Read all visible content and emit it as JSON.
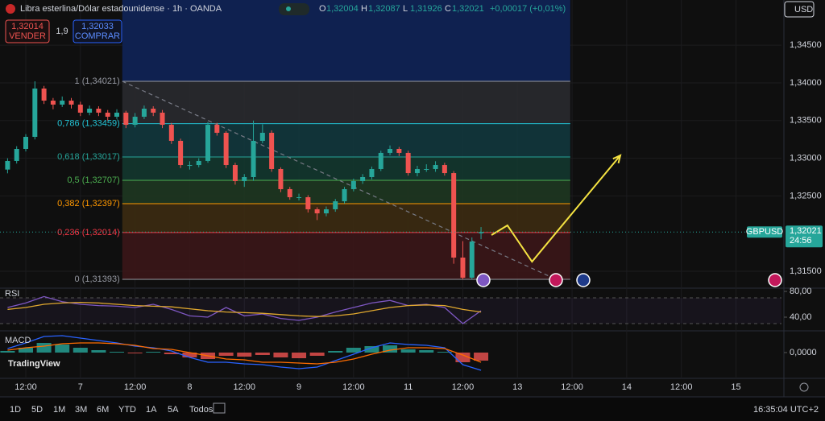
{
  "header": {
    "title": "Libra esterlina/Dólar estadounidense · 1h · OANDA",
    "ohlc": [
      {
        "key": "O",
        "value": "1,32004"
      },
      {
        "key": "H",
        "value": "1,32087"
      },
      {
        "key": "L",
        "value": "1,31926"
      },
      {
        "key": "C",
        "value": "1,32021"
      }
    ],
    "change": "+0,00017 (+0,01%)",
    "sell": {
      "price": "1,32014",
      "label": "VENDER"
    },
    "spread": "1,9",
    "buy": {
      "price": "1,32033",
      "label": "COMPRAR"
    },
    "currency": "USD"
  },
  "chart_data": [
    {
      "type": "candlestick",
      "symbol": "GBPUSD",
      "last_price_label": "1,32021",
      "countdown": "24:56",
      "x": [
        -4,
        -2,
        0,
        2,
        4,
        6,
        8,
        10,
        12,
        14,
        16,
        18,
        20,
        22,
        24,
        26,
        28,
        30,
        32,
        34,
        36,
        38,
        40,
        42,
        44,
        46,
        48,
        50,
        52,
        54,
        56,
        58,
        60,
        62,
        64,
        66,
        68,
        70,
        72,
        74,
        76,
        78,
        80,
        82,
        84,
        86,
        88,
        90,
        92,
        94,
        96,
        98,
        100
      ],
      "open": [
        1.3285,
        1.32964,
        1.33124,
        1.33284,
        1.33925,
        1.33765,
        1.33712,
        1.33765,
        1.33712,
        1.33605,
        1.33658,
        1.33605,
        1.33551,
        1.33605,
        1.33444,
        1.33551,
        1.33658,
        1.33605,
        1.33444,
        1.33231,
        1.3291,
        1.3291,
        1.32964,
        1.33444,
        1.33338,
        1.3291,
        1.32697,
        1.3275,
        1.33231,
        1.33338,
        1.32857,
        1.3259,
        1.32483,
        1.32483,
        1.32323,
        1.32269,
        1.32323,
        1.32429,
        1.3259,
        1.32697,
        1.3275,
        1.32857,
        1.33071,
        1.33124,
        1.33071,
        1.32803,
        1.32857,
        1.32857,
        1.3291,
        1.32803,
        1.31682,
        1.31415,
        1.32004
      ],
      "high": [
        1.33,
        1.3316,
        1.3332,
        1.34021,
        1.3396,
        1.338,
        1.3382,
        1.338,
        1.3375,
        1.337,
        1.3369,
        1.3364,
        1.3365,
        1.3363,
        1.336,
        1.337,
        1.3369,
        1.3364,
        1.3347,
        1.3326,
        1.3296,
        1.33,
        1.3348,
        1.3347,
        1.3336,
        1.3294,
        1.3279,
        1.335,
        1.3345,
        1.3337,
        1.3288,
        1.3262,
        1.3253,
        1.3251,
        1.3235,
        1.3236,
        1.3246,
        1.3262,
        1.3273,
        1.3279,
        1.3289,
        1.331,
        1.3317,
        1.3315,
        1.331,
        1.329,
        1.3292,
        1.3296,
        1.3294,
        1.3283,
        1.319,
        1.3195,
        1.32087
      ],
      "low": [
        1.328,
        1.3293,
        1.3309,
        1.3325,
        1.3372,
        1.3365,
        1.3368,
        1.3366,
        1.3356,
        1.3357,
        1.3356,
        1.335,
        1.3352,
        1.334,
        1.3341,
        1.3352,
        1.3356,
        1.334,
        1.3319,
        1.3287,
        1.3285,
        1.3288,
        1.3294,
        1.333,
        1.3287,
        1.3265,
        1.3262,
        1.327,
        1.332,
        1.3282,
        1.3255,
        1.3245,
        1.3244,
        1.3228,
        1.3218,
        1.3223,
        1.3229,
        1.324,
        1.3256,
        1.3266,
        1.3272,
        1.3283,
        1.3304,
        1.3303,
        1.3277,
        1.3276,
        1.3282,
        1.3282,
        1.3277,
        1.316,
        1.31393,
        1.31393,
        1.31926
      ],
      "close": [
        1.32964,
        1.33124,
        1.33284,
        1.33925,
        1.33765,
        1.33712,
        1.33765,
        1.33712,
        1.33605,
        1.33658,
        1.33605,
        1.33551,
        1.33605,
        1.33444,
        1.33551,
        1.33658,
        1.33605,
        1.33444,
        1.33231,
        1.3291,
        1.3291,
        1.32964,
        1.33444,
        1.33338,
        1.3291,
        1.32697,
        1.3275,
        1.33231,
        1.33338,
        1.32857,
        1.3259,
        1.32483,
        1.32483,
        1.32323,
        1.32269,
        1.32323,
        1.32429,
        1.3259,
        1.32697,
        1.3275,
        1.32857,
        1.33071,
        1.33124,
        1.33071,
        1.32803,
        1.32857,
        1.32857,
        1.3291,
        1.32803,
        1.31682,
        1.31415,
        1.31895,
        1.32021
      ],
      "up_color": "#26a69a",
      "down_color": "#ef5350",
      "xlim": [
        -5.664,
        166
      ],
      "ylim": [
        1.31308,
        1.351
      ],
      "yticks": [
        {
          "value": 1.345,
          "label": "1,34500"
        },
        {
          "value": 1.34,
          "label": "1,34000"
        },
        {
          "value": 1.335,
          "label": "1,33500"
        },
        {
          "value": 1.33,
          "label": "1,33000"
        },
        {
          "value": 1.325,
          "label": "1,32500"
        },
        {
          "value": 1.315,
          "label": "1,31500"
        }
      ],
      "xticks": [
        {
          "value": 0,
          "label": "12:00"
        },
        {
          "value": 12,
          "label": "7"
        },
        {
          "value": 24,
          "label": "12:00"
        },
        {
          "value": 36,
          "label": "8"
        },
        {
          "value": 48,
          "label": "12:00"
        },
        {
          "value": 60,
          "label": "9"
        },
        {
          "value": 72,
          "label": "12:00"
        },
        {
          "value": 84,
          "label": "11"
        },
        {
          "value": 96,
          "label": "12:00"
        },
        {
          "value": 108,
          "label": "13"
        },
        {
          "value": 120,
          "label": "12:00"
        },
        {
          "value": 132,
          "label": "14"
        },
        {
          "value": 144,
          "label": "12:00"
        },
        {
          "value": 156,
          "label": "15"
        }
      ],
      "grid": true,
      "fib": {
        "x": [
          21.2,
          119.6
        ],
        "levels": [
          {
            "label": "1 (1,34021)",
            "value": 1.34021,
            "color": "#9598a1",
            "fill": "#2a2b30"
          },
          {
            "label": "0,786 (1,33459)",
            "value": 1.33459,
            "color": "#22c4d6",
            "fill": "#123a3f"
          },
          {
            "label": "0,618 (1,33017)",
            "value": 1.33017,
            "color": "#26a69a",
            "fill": "#133a30"
          },
          {
            "label": "0,5 (1,32707)",
            "value": 1.32707,
            "color": "#4caf50",
            "fill": "#1f3a22"
          },
          {
            "label": "0,382 (1,32397)",
            "value": 1.32397,
            "color": "#ff9800",
            "fill": "#3e2d12"
          },
          {
            "label": "0,236 (1,32014)",
            "value": 1.32014,
            "color": "#f23645",
            "fill": "#3d1619"
          },
          {
            "label": "0 (1,31393)",
            "value": 1.31393,
            "color": "#9598a1"
          }
        ],
        "top_fill": "#0f2150"
      },
      "trendline": {
        "x": [
          21.2,
          116.5
        ],
        "y": [
          1.34021,
          1.31393
        ],
        "color": "#787b86"
      },
      "projection": {
        "x": [
          102.3,
          105.8,
          111.2,
          130.6
        ],
        "y": [
          1.31981,
          1.32109,
          1.31628,
          1.33038
        ],
        "color": "#f5e342"
      }
    },
    {
      "type": "line",
      "title": "RSI",
      "x": [
        -4,
        0,
        4,
        8,
        12,
        16,
        20,
        24,
        28,
        32,
        36,
        40,
        44,
        48,
        52,
        56,
        60,
        64,
        68,
        72,
        76,
        80,
        84,
        88,
        92,
        96,
        100
      ],
      "series": [
        {
          "color": "#7e57c2",
          "values": [
            55,
            62,
            72,
            64,
            60,
            58,
            57,
            55,
            60,
            52,
            42,
            40,
            55,
            42,
            45,
            38,
            35,
            40,
            48,
            55,
            62,
            66,
            58,
            60,
            55,
            30,
            50
          ]
        },
        {
          "color": "#e0a82e",
          "values": [
            52,
            55,
            60,
            62,
            63,
            62,
            60,
            58,
            57,
            56,
            53,
            50,
            48,
            47,
            46,
            44,
            42,
            41,
            42,
            45,
            50,
            55,
            58,
            59,
            58,
            52,
            48
          ]
        }
      ],
      "ylim": [
        20,
        85
      ],
      "yticks": [
        {
          "value": 80,
          "label": "80,00"
        },
        {
          "value": 40,
          "label": "40,00"
        }
      ],
      "bands": [
        30,
        70
      ]
    },
    {
      "type": "macd",
      "title": "MACD",
      "x": [
        -4,
        0,
        4,
        8,
        12,
        16,
        20,
        24,
        28,
        32,
        36,
        40,
        44,
        48,
        52,
        56,
        60,
        64,
        68,
        72,
        76,
        80,
        84,
        88,
        92,
        96,
        100
      ],
      "histogram": [
        0.0002,
        0.0006,
        0.0012,
        0.001,
        0.0006,
        0.0003,
        0.0001,
        -0.0001,
        0.0001,
        -0.0002,
        -0.0006,
        -0.0008,
        -0.0004,
        -0.0005,
        -0.0003,
        -0.0006,
        -0.0007,
        -0.0004,
        0.0002,
        0.0006,
        0.0008,
        0.0009,
        0.0004,
        0.0003,
        0.0001,
        -0.0012,
        -0.001
      ],
      "series": [
        {
          "color": "#2962ff",
          "values": [
            0.0005,
            0.0012,
            0.002,
            0.0021,
            0.0018,
            0.0015,
            0.0012,
            0.0008,
            0.0006,
            0.0002,
            -0.0006,
            -0.0012,
            -0.0012,
            -0.0014,
            -0.0015,
            -0.0018,
            -0.002,
            -0.0018,
            -0.001,
            -0.0002,
            0.0006,
            0.0012,
            0.001,
            0.0009,
            0.0006,
            -0.0015,
            -0.0022
          ]
        },
        {
          "color": "#ff6d00",
          "values": [
            0.0003,
            0.0006,
            0.0008,
            0.0011,
            0.0012,
            0.0012,
            0.0011,
            0.0009,
            0.0005,
            0.0004,
            0,
            -0.0004,
            -0.0008,
            -0.0009,
            -0.0012,
            -0.0012,
            -0.0013,
            -0.0014,
            -0.0012,
            -0.0008,
            -0.0002,
            0.0003,
            0.0006,
            0.0006,
            0.0005,
            -0.0003,
            -0.0012
          ]
        }
      ],
      "pos_color": "#26a69a",
      "neg_color": "#ef5350",
      "ylim": [
        -0.0032,
        0.0026
      ],
      "yticks": [
        {
          "value": 0,
          "label": "0,0000"
        }
      ]
    }
  ],
  "logo": "TradingView",
  "toolbar": {
    "ranges": [
      "1D",
      "5D",
      "1M",
      "3M",
      "6M",
      "YTD",
      "1A",
      "5A",
      "Todos"
    ],
    "time": "16:35:04 UTC+2"
  }
}
